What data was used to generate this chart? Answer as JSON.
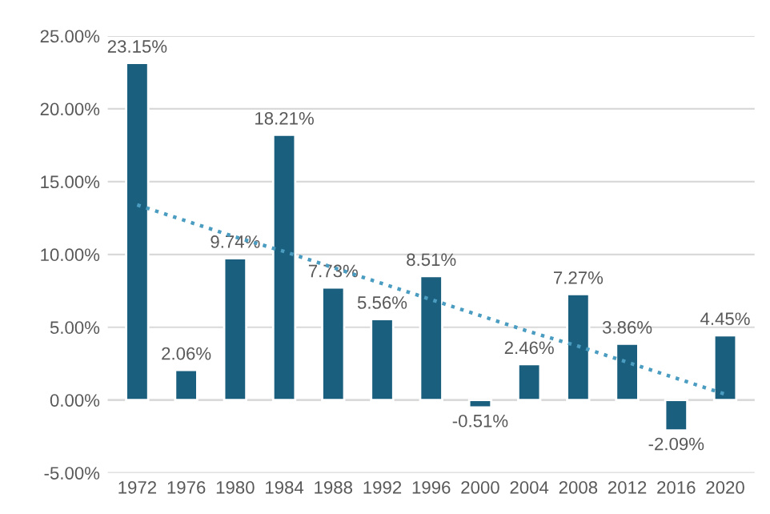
{
  "chart_data": {
    "type": "bar",
    "categories": [
      "1972",
      "1976",
      "1980",
      "1984",
      "1988",
      "1992",
      "1996",
      "2000",
      "2004",
      "2008",
      "2012",
      "2016",
      "2020"
    ],
    "series": [
      {
        "color": "#1b5f7e",
        "values": [
          23.15,
          2.06,
          9.74,
          18.21,
          7.73,
          5.56,
          8.51,
          -0.51,
          2.46,
          7.27,
          3.86,
          -2.09,
          4.45
        ],
        "value_labels": [
          "23.15%",
          "2.06%",
          "9.74%",
          "18.21%",
          "7.73%",
          "5.56%",
          "8.51%",
          "-0.51%",
          "2.46%",
          "7.27%",
          "3.86%",
          "-2.09%",
          "4.45%"
        ]
      },
      {
        "type": "line",
        "color": "#4a9cc0",
        "line_style": "dotted",
        "values": [
          13.4,
          12.3,
          11.2,
          10.2,
          9.1,
          8.0,
          6.9,
          5.8,
          4.7,
          3.7,
          2.6,
          1.5,
          0.4
        ]
      }
    ],
    "ylim": [
      -5,
      25
    ],
    "yticks": [
      {
        "value": -5,
        "label": "-5.00%"
      },
      {
        "value": 0,
        "label": "0.00%"
      },
      {
        "value": 5,
        "label": "5.00%"
      },
      {
        "value": 10,
        "label": "10.00%"
      },
      {
        "value": 15,
        "label": "15.00%"
      },
      {
        "value": 20,
        "label": "20.00%"
      },
      {
        "value": 25,
        "label": "25.00%"
      }
    ],
    "grid": "y",
    "legend": false
  }
}
